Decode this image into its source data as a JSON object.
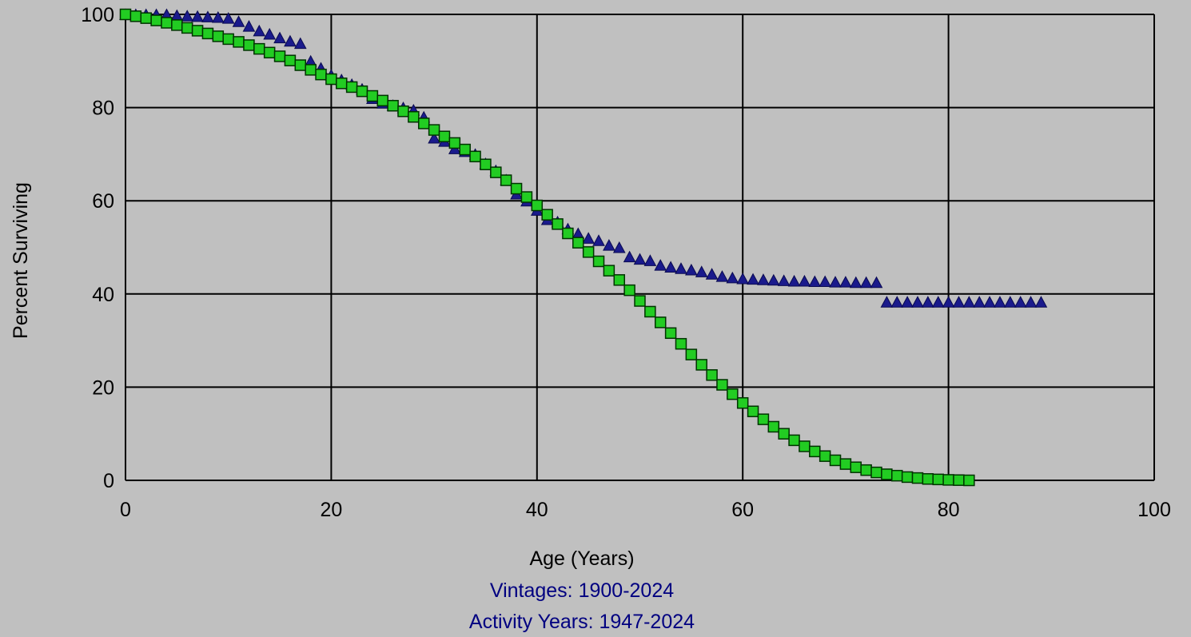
{
  "chart_data": {
    "type": "scatter",
    "xlabel": "Age (Years)",
    "ylabel": "Percent Surviving",
    "subtitles": [
      "Vintages: 1900-2024",
      "Activity Years: 1947-2024"
    ],
    "xlim": [
      0,
      100
    ],
    "ylim": [
      0,
      100
    ],
    "x_ticks": [
      0,
      20,
      40,
      60,
      80,
      100
    ],
    "y_ticks": [
      0,
      20,
      40,
      60,
      80,
      100
    ],
    "grid": true,
    "series": [
      {
        "marker": "triangle",
        "color": "#1a1a8c",
        "x": [
          0,
          1,
          2,
          3,
          4,
          5,
          6,
          7,
          8,
          9,
          10,
          11,
          12,
          13,
          14,
          15,
          16,
          17,
          18,
          19,
          20,
          21,
          22,
          23,
          24,
          25,
          26,
          27,
          28,
          29,
          30,
          31,
          32,
          33,
          34,
          35,
          36,
          37,
          38,
          39,
          40,
          41,
          42,
          43,
          44,
          45,
          46,
          47,
          48,
          49,
          50,
          51,
          52,
          53,
          54,
          55,
          56,
          57,
          58,
          59,
          60,
          61,
          62,
          63,
          64,
          65,
          66,
          67,
          68,
          69,
          70,
          71,
          72,
          73,
          74,
          75,
          76,
          77,
          78,
          79,
          80,
          81,
          82,
          83,
          84,
          85,
          86,
          87,
          88,
          89
        ],
        "y": [
          100,
          100,
          100,
          100,
          100,
          99.8,
          99.7,
          99.6,
          99.5,
          99.4,
          99.2,
          98.5,
          97.5,
          96.5,
          95.8,
          95,
          94.3,
          93.8,
          90,
          88.5,
          87,
          86,
          85,
          84,
          82,
          81,
          80.5,
          80,
          79.5,
          78,
          73.5,
          72.8,
          71.2,
          70.6,
          70,
          68,
          66.5,
          64.5,
          61.5,
          60,
          58,
          56,
          55.5,
          54,
          53,
          52,
          51.5,
          50.5,
          50,
          48,
          47.5,
          47.2,
          46.2,
          45.8,
          45.5,
          45.2,
          44.8,
          44.3,
          43.8,
          43.5,
          43.3,
          43.2,
          43.1,
          43,
          42.9,
          42.8,
          42.8,
          42.7,
          42.7,
          42.6,
          42.6,
          42.5,
          42.5,
          42.5,
          38.3,
          38.3,
          38.3,
          38.3,
          38.3,
          38.3,
          38.3,
          38.3,
          38.3,
          38.3,
          38.3,
          38.3,
          38.3,
          38.3,
          38.3,
          38.3
        ]
      },
      {
        "marker": "square",
        "color": "#22cc22",
        "x": [
          0,
          1,
          2,
          3,
          4,
          5,
          6,
          7,
          8,
          9,
          10,
          11,
          12,
          13,
          14,
          15,
          16,
          17,
          18,
          19,
          20,
          21,
          22,
          23,
          24,
          25,
          26,
          27,
          28,
          29,
          30,
          31,
          32,
          33,
          34,
          35,
          36,
          37,
          38,
          39,
          40,
          41,
          42,
          43,
          44,
          45,
          46,
          47,
          48,
          49,
          50,
          51,
          52,
          53,
          54,
          55,
          56,
          57,
          58,
          59,
          60,
          61,
          62,
          63,
          64,
          65,
          66,
          67,
          68,
          69,
          70,
          71,
          72,
          73,
          74,
          75,
          76,
          77,
          78,
          79,
          80,
          81,
          82
        ],
        "y": [
          100,
          99.6,
          99.2,
          98.7,
          98.2,
          97.7,
          97.1,
          96.5,
          95.9,
          95.3,
          94.7,
          94.1,
          93.4,
          92.6,
          91.8,
          91,
          90.1,
          89.1,
          88.1,
          87.1,
          86.1,
          85.2,
          84.4,
          83.5,
          82.5,
          81.5,
          80.4,
          79.2,
          78,
          76.6,
          75.2,
          73.8,
          72.4,
          71,
          69.5,
          67.8,
          66.1,
          64.4,
          62.6,
          60.8,
          59,
          57,
          55,
          53,
          51,
          49,
          47,
          45,
          43,
          40.8,
          38.5,
          36.2,
          33.9,
          31.6,
          29.3,
          27,
          24.8,
          22.6,
          20.5,
          18.5,
          16.6,
          14.8,
          13.1,
          11.5,
          10,
          8.6,
          7.3,
          6.2,
          5.2,
          4.3,
          3.5,
          2.8,
          2.2,
          1.7,
          1.3,
          1,
          0.7,
          0.5,
          0.3,
          0.2,
          0.1,
          0.05,
          0
        ]
      }
    ]
  }
}
